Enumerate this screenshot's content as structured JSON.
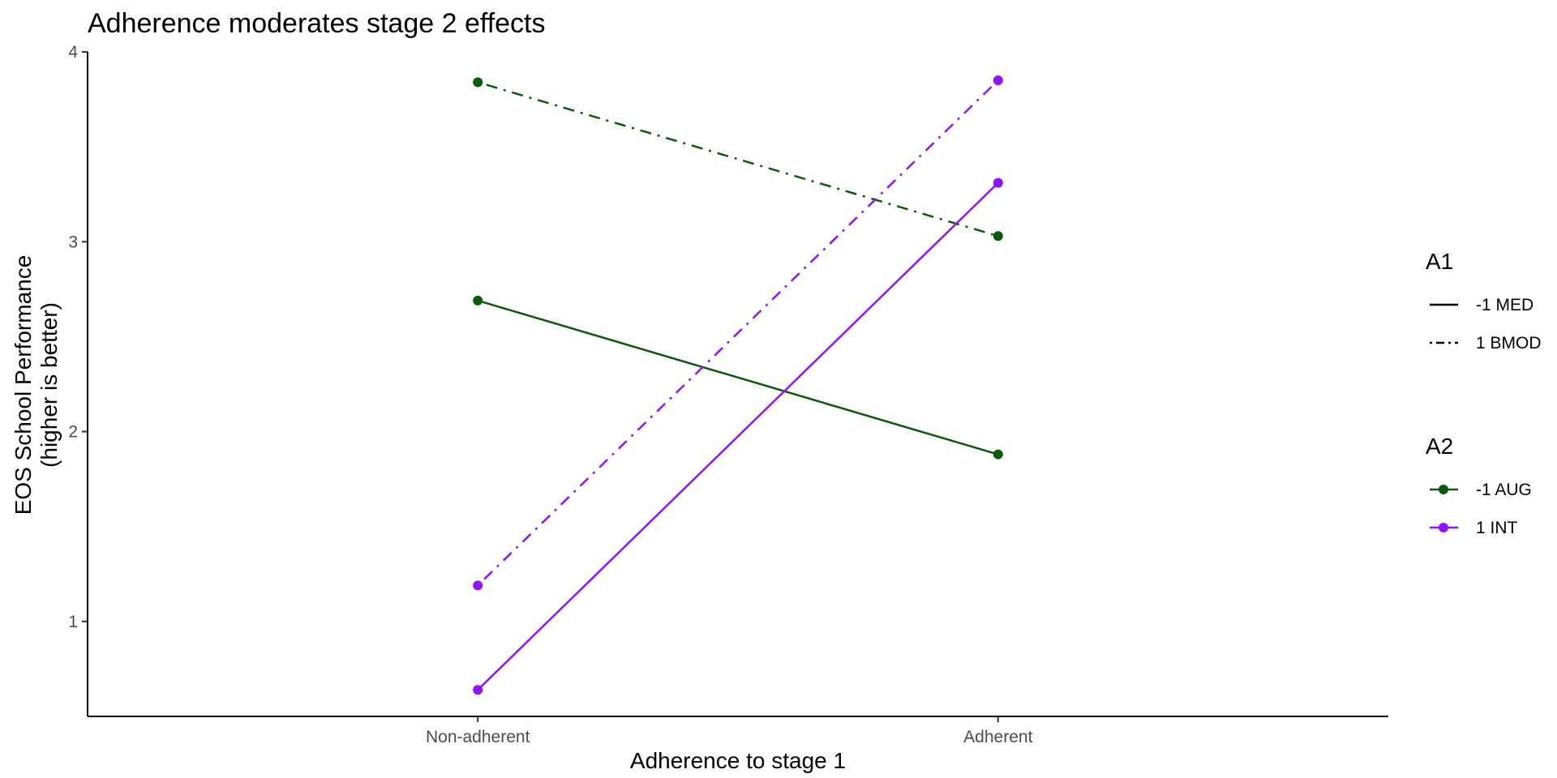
{
  "chart_data": {
    "type": "line",
    "title": "Adherence moderates stage 2 effects",
    "xlabel": "Adherence to stage 1",
    "ylabel_line1": "EOS School Performance",
    "ylabel_line2": "(higher is better)",
    "categories": [
      "Non-adherent",
      "Adherent"
    ],
    "ylim": [
      0.5,
      4.0
    ],
    "yticks": [
      "1",
      "2",
      "3",
      "4"
    ],
    "grid": false,
    "legend_position": "right",
    "legends": [
      {
        "title": "A1",
        "kind": "linetype",
        "items": [
          {
            "label": "-1 MED",
            "dash": "solid"
          },
          {
            "label": "1 BMOD",
            "dash": "dotdash"
          }
        ]
      },
      {
        "title": "A2",
        "kind": "color",
        "items": [
          {
            "label": "-1 AUG",
            "color": "#0b5a0b"
          },
          {
            "label": "1 INT",
            "color": "#9012fe"
          }
        ]
      }
    ],
    "series": [
      {
        "a1": "-1 MED",
        "a2": "-1 AUG",
        "color": "#0b5a0b",
        "dash": "solid",
        "values": [
          2.69,
          1.88
        ]
      },
      {
        "a1": "1 BMOD",
        "a2": "-1 AUG",
        "color": "#0b5a0b",
        "dash": "dotdash",
        "values": [
          3.84,
          3.03
        ]
      },
      {
        "a1": "-1 MED",
        "a2": "1 INT",
        "color": "#9012fe",
        "dash": "solid",
        "values": [
          0.64,
          3.31
        ]
      },
      {
        "a1": "1 BMOD",
        "a2": "1 INT",
        "color": "#9012fe",
        "dash": "dotdash",
        "values": [
          1.19,
          3.85
        ]
      }
    ]
  }
}
